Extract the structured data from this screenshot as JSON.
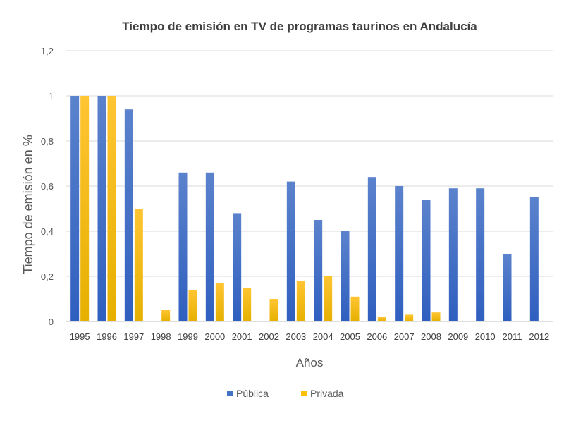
{
  "chart_data": {
    "type": "bar",
    "title": "Tiempo de emisión en TV de programas taurinos en Andalucía",
    "xlabel": "Años",
    "ylabel": "Tiempo de emisión en %",
    "ylim": [
      0,
      1.2
    ],
    "yticks": [
      "0",
      "0,2",
      "0,4",
      "0,6",
      "0,8",
      "1",
      "1,2"
    ],
    "grid": true,
    "legend": "bottom",
    "categories": [
      "1995",
      "1996",
      "1997",
      "1998",
      "1999",
      "2000",
      "2001",
      "2002",
      "2003",
      "2004",
      "2005",
      "2006",
      "2007",
      "2008",
      "2009",
      "2010",
      "2011",
      "2012"
    ],
    "series": [
      {
        "name": "Pública",
        "color": "#4472C4",
        "values": [
          1,
          1,
          0.94,
          0,
          0.66,
          0.66,
          0.48,
          0,
          0.62,
          0.45,
          0.4,
          0.64,
          0.6,
          0.54,
          0.59,
          0.59,
          0.3,
          0.55
        ]
      },
      {
        "name": "Privada",
        "color": "#FFC000",
        "values": [
          1,
          1,
          0.5,
          0.05,
          0.14,
          0.17,
          0.15,
          0.1,
          0.18,
          0.2,
          0.11,
          0.02,
          0.03,
          0.04,
          0,
          0,
          0,
          0
        ]
      }
    ]
  }
}
